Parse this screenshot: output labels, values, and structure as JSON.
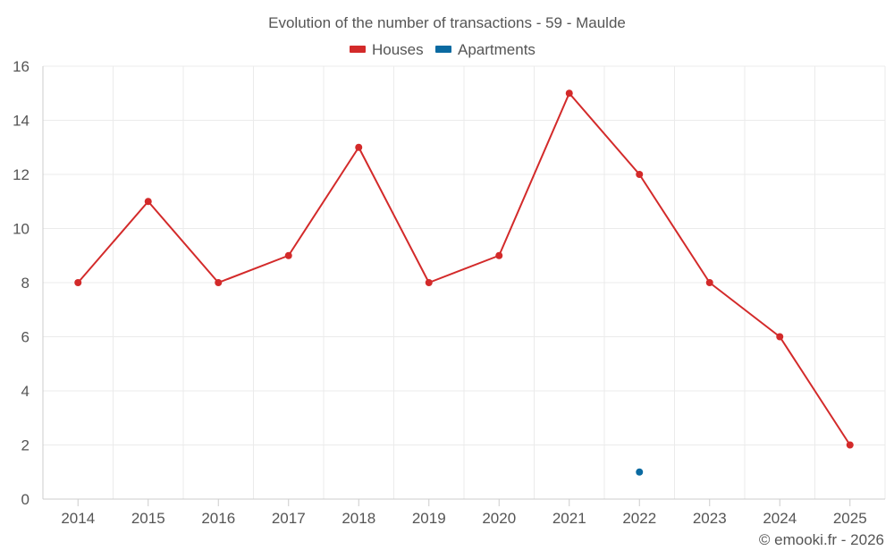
{
  "chart_data": {
    "type": "line",
    "title": "Evolution of the number of transactions - 59 - Maulde",
    "categories": [
      "2014",
      "2015",
      "2016",
      "2017",
      "2018",
      "2019",
      "2020",
      "2021",
      "2022",
      "2023",
      "2024",
      "2025"
    ],
    "series": [
      {
        "name": "Houses",
        "color": "#d32a2a",
        "values": [
          8,
          11,
          8,
          9,
          13,
          8,
          9,
          15,
          12,
          8,
          6,
          2
        ]
      },
      {
        "name": "Apartments",
        "color": "#0a6aa1",
        "values": [
          null,
          null,
          null,
          null,
          null,
          null,
          null,
          null,
          1,
          null,
          null,
          null
        ]
      }
    ],
    "ylim": [
      0,
      16
    ],
    "yticks": [
      "0",
      "2",
      "4",
      "6",
      "8",
      "10",
      "12",
      "14",
      "16"
    ],
    "xlabel": "",
    "ylabel": "",
    "grid": true,
    "legend_position": "top-center"
  },
  "footer": {
    "credit": "© emooki.fr - 2026"
  }
}
